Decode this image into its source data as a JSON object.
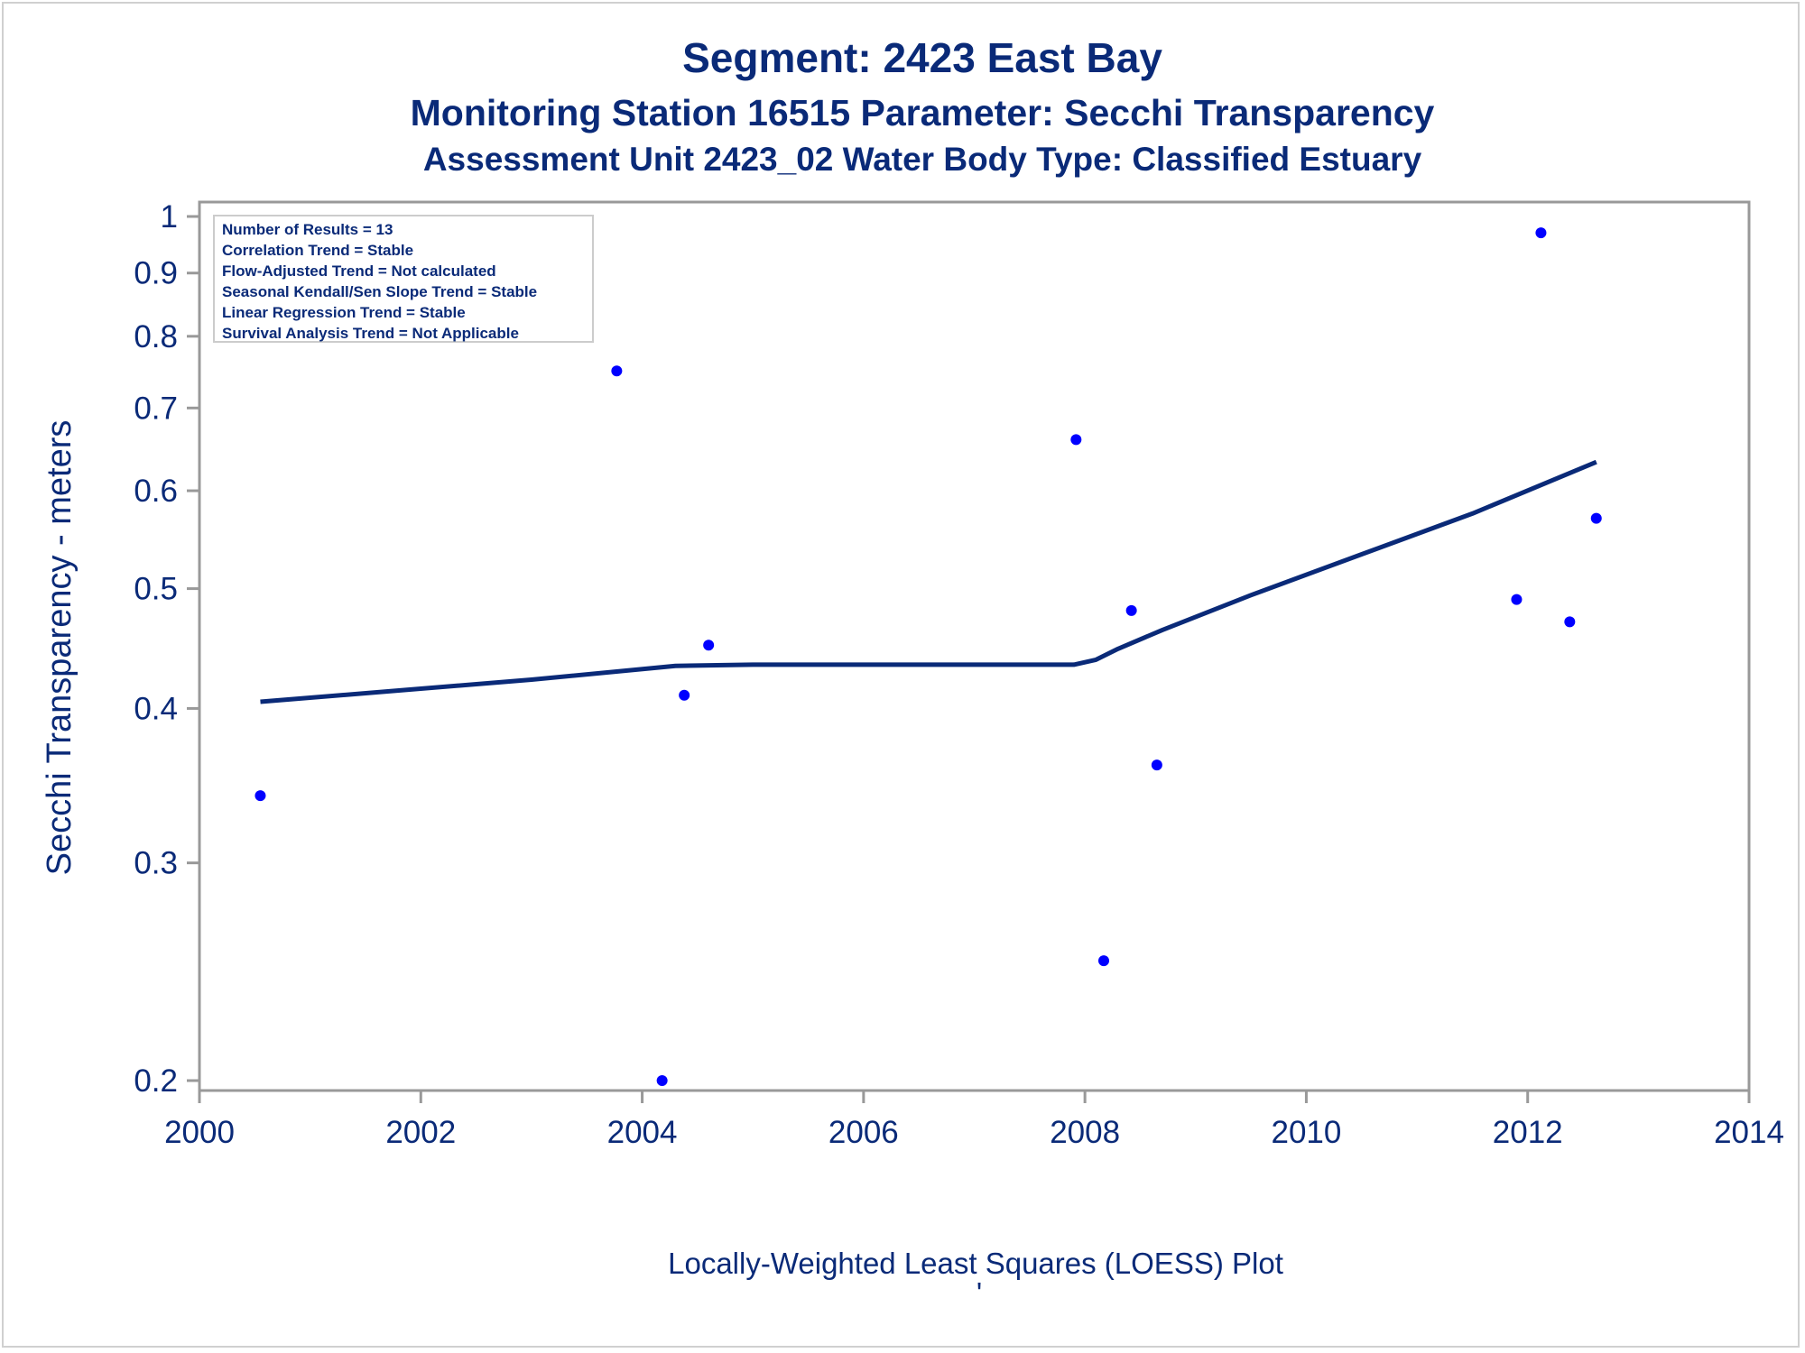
{
  "titles": {
    "line1": "Segment: 2423  East Bay",
    "line2": "Monitoring Station 16515 Parameter: Secchi Transparency",
    "line3": "Assessment Unit 2423_02   Water Body Type: Classified Estuary"
  },
  "stats_box": [
    "Number of Results = 13",
    "Correlation Trend = Stable",
    "Flow-Adjusted Trend = Not calculated",
    "Seasonal Kendall/Sen Slope Trend = Stable",
    "Linear Regression Trend = Stable",
    "Survival Analysis Trend = Not Applicable"
  ],
  "footer": {
    "label": "Locally-Weighted Least Squares (LOESS) Plot",
    "mark": "'"
  },
  "colors": {
    "text": "#0a2a78",
    "points": "#0000ff",
    "loess_line": "#0a2a78",
    "axis": "#999999"
  },
  "chart_data": {
    "type": "scatter",
    "title": "Segment: 2423  East Bay",
    "xlabel": "",
    "ylabel": "Secchi Transparency - meters",
    "yscale": "log",
    "xlim": [
      2000,
      2014
    ],
    "ylim": [
      0.195,
      1.01
    ],
    "xticks": [
      2000,
      2002,
      2004,
      2006,
      2008,
      2010,
      2012,
      2014
    ],
    "yticks": [
      0.2,
      0.3,
      0.4,
      0.5,
      0.6,
      0.7,
      0.8,
      0.9,
      1
    ],
    "ytick_labels": [
      "0.2",
      "0.3",
      "0.4",
      "0.5",
      "0.6",
      "0.7",
      "0.8",
      "0.9",
      "1"
    ],
    "grid": false,
    "series": [
      {
        "type": "scatter",
        "points": [
          [
            2000.55,
            0.34
          ],
          [
            2003.77,
            0.75
          ],
          [
            2004.18,
            0.2
          ],
          [
            2004.38,
            0.41
          ],
          [
            2004.6,
            0.45
          ],
          [
            2007.92,
            0.66
          ],
          [
            2008.17,
            0.25
          ],
          [
            2008.42,
            0.48
          ],
          [
            2008.65,
            0.36
          ],
          [
            2011.9,
            0.49
          ],
          [
            2012.12,
            0.97
          ],
          [
            2012.38,
            0.47
          ],
          [
            2012.62,
            0.57
          ]
        ]
      },
      {
        "type": "line",
        "points": [
          [
            2000.55,
            0.405
          ],
          [
            2003.0,
            0.422
          ],
          [
            2004.3,
            0.433
          ],
          [
            2005.0,
            0.434
          ],
          [
            2007.9,
            0.434
          ],
          [
            2008.1,
            0.438
          ],
          [
            2008.3,
            0.447
          ],
          [
            2008.7,
            0.463
          ],
          [
            2009.5,
            0.494
          ],
          [
            2010.5,
            0.533
          ],
          [
            2011.5,
            0.575
          ],
          [
            2012.62,
            0.633
          ]
        ]
      }
    ]
  }
}
